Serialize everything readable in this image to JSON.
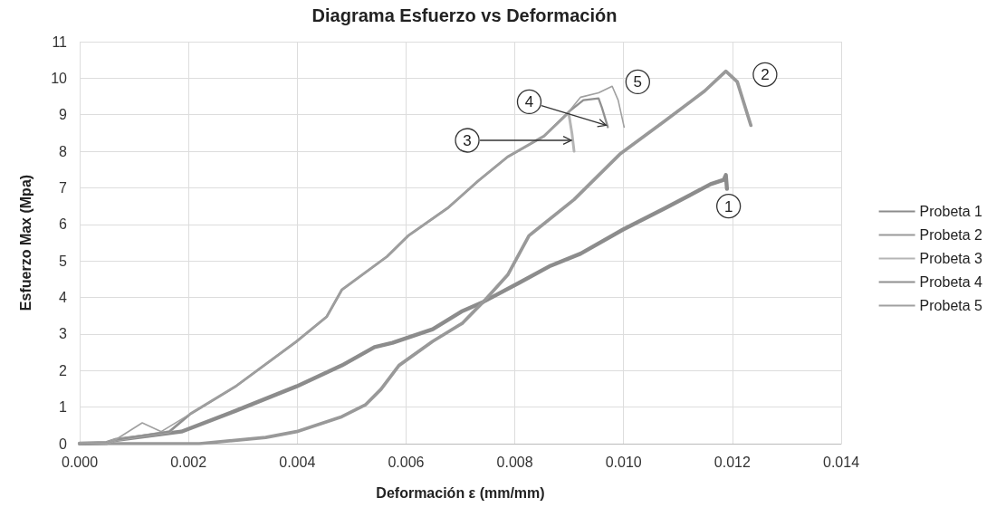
{
  "chart_data": {
    "type": "line",
    "title": "Diagrama Esfuerzo vs Deformación",
    "xlabel": "Deformación ε (mm/mm)",
    "ylabel": "Esfuerzo Max (Mpa)",
    "xlim": [
      0,
      0.014
    ],
    "xticks": [
      {
        "value": 0,
        "label": "0.000"
      },
      {
        "value": 0.002,
        "label": "0.002"
      },
      {
        "value": 0.004,
        "label": "0.004"
      },
      {
        "value": 0.006,
        "label": "0.006"
      },
      {
        "value": 0.008,
        "label": "0.008"
      },
      {
        "value": 0.01,
        "label": "0.010"
      },
      {
        "value": 0.012,
        "label": "0.012"
      },
      {
        "value": 0.014,
        "label": "0.014"
      }
    ],
    "ylim": [
      0,
      11
    ],
    "yticks": [
      0,
      1,
      2,
      3,
      4,
      5,
      6,
      7,
      8,
      9,
      10,
      11
    ],
    "grid": true,
    "legend": "right",
    "marker": "none",
    "line_style": "solid",
    "series": [
      {
        "name": "Probeta 1",
        "color": "#8c8c8c",
        "x": [
          0,
          0.0005,
          0.00065,
          0.00187,
          0.00287,
          0.00399,
          0.00482,
          0.00542,
          0.00575,
          0.00649,
          0.00704,
          0.00742,
          0.00809,
          0.00866,
          0.00921,
          0.00999,
          0.01076,
          0.0116,
          0.01184,
          0.01188,
          0.0119
        ],
        "values": [
          0,
          0.02,
          0.1,
          0.33,
          0.9,
          1.57,
          2.14,
          2.64,
          2.76,
          3.13,
          3.63,
          3.88,
          4.41,
          4.87,
          5.2,
          5.86,
          6.44,
          7.1,
          7.22,
          7.35,
          6.97
        ]
      },
      {
        "name": "Probeta 2",
        "color": "#999999",
        "x": [
          0,
          0.0022,
          0.00342,
          0.00399,
          0.00482,
          0.00526,
          0.00554,
          0.00587,
          0.00649,
          0.00704,
          0.00742,
          0.00787,
          0.00826,
          0.00909,
          0.00993,
          0.01076,
          0.01149,
          0.01188,
          0.01209,
          0.01234
        ],
        "values": [
          0,
          0,
          0.17,
          0.33,
          0.74,
          1.07,
          1.49,
          2.14,
          2.8,
          3.3,
          3.88,
          4.62,
          5.69,
          6.68,
          7.92,
          8.83,
          9.65,
          10.19,
          9.9,
          8.71
        ]
      },
      {
        "name": "Probeta 3",
        "color": "#b5b5b5",
        "x": [
          0,
          0.0005,
          0.00065,
          0.00165,
          0.00204,
          0.00287,
          0.00399,
          0.00454,
          0.00482,
          0.00565,
          0.00604,
          0.00676,
          0.00732,
          0.00787,
          0.00854,
          0.00899,
          0.00905,
          0.00909
        ],
        "values": [
          0,
          0.02,
          0.1,
          0.33,
          0.82,
          1.57,
          2.8,
          3.47,
          4.21,
          5.12,
          5.69,
          6.44,
          7.18,
          7.85,
          8.42,
          9.05,
          8.5,
          8.0
        ]
      },
      {
        "name": "Probeta 4",
        "color": "#909090",
        "x": [
          0,
          0.0005,
          0.00065,
          0.00165,
          0.00204,
          0.00287,
          0.00399,
          0.00454,
          0.00482,
          0.00565,
          0.00604,
          0.00676,
          0.00732,
          0.00787,
          0.00854,
          0.00899,
          0.00926,
          0.00954,
          0.0096,
          0.00971
        ],
        "values": [
          0,
          0.02,
          0.1,
          0.33,
          0.82,
          1.57,
          2.8,
          3.47,
          4.21,
          5.12,
          5.69,
          6.44,
          7.18,
          7.85,
          8.42,
          9.08,
          9.4,
          9.45,
          9.2,
          8.66
        ]
      },
      {
        "name": "Probeta 5",
        "color": "#a0a0a0",
        "x": [
          0,
          0.0005,
          0.00065,
          0.00115,
          0.0015,
          0.00204,
          0.00287,
          0.00399,
          0.00454,
          0.00482,
          0.00565,
          0.00604,
          0.00676,
          0.00732,
          0.00787,
          0.00854,
          0.00899,
          0.00921,
          0.00954,
          0.00979,
          0.0099,
          0.01001
        ],
        "values": [
          0,
          0.02,
          0.1,
          0.57,
          0.33,
          0.82,
          1.57,
          2.8,
          3.47,
          4.21,
          5.12,
          5.69,
          6.44,
          7.18,
          7.85,
          8.42,
          9.08,
          9.48,
          9.6,
          9.78,
          9.4,
          8.66
        ]
      }
    ],
    "annotations": [
      {
        "text": "1",
        "x": 0.01193,
        "y": 6.5
      },
      {
        "text": "2",
        "x": 0.0126,
        "y": 10.1
      },
      {
        "text": "3",
        "x": 0.00904,
        "y": 8.3
      },
      {
        "text": "4",
        "x": 0.00968,
        "y": 8.71
      },
      {
        "text": "5",
        "x": 0.01026,
        "y": 9.9
      }
    ]
  }
}
